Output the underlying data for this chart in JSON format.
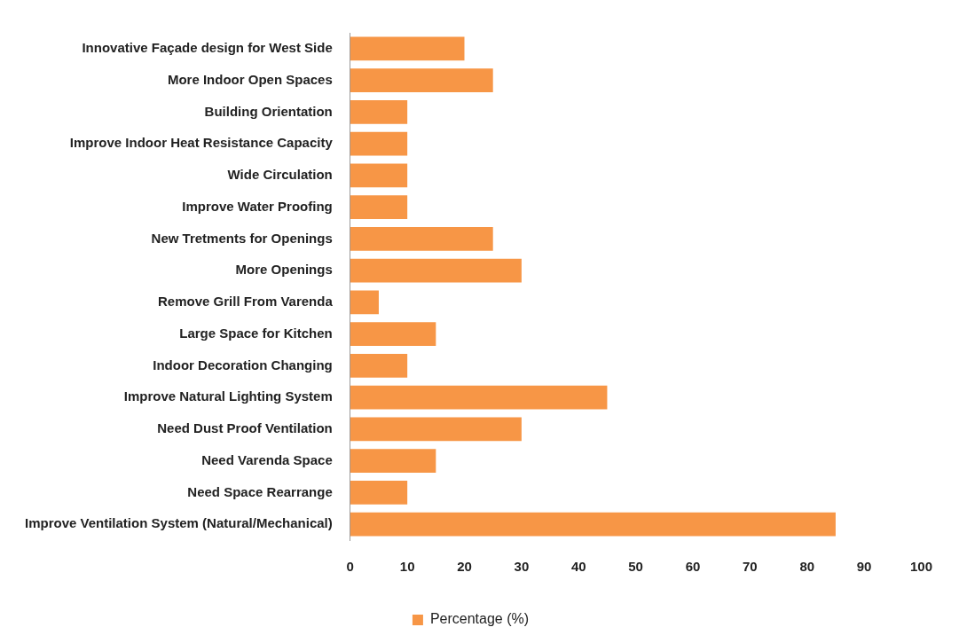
{
  "chart_data": {
    "type": "bar",
    "orientation": "horizontal",
    "categories": [
      "Innovative Façade design for West Side",
      "More Indoor Open Spaces",
      "Building Orientation",
      "Improve Indoor Heat Resistance Capacity",
      "Wide Circulation",
      "Improve Water Proofing",
      "New Tretments for Openings",
      "More Openings",
      "Remove Grill From Varenda",
      "Large Space for Kitchen",
      "Indoor Decoration Changing",
      "Improve Natural Lighting System",
      "Need Dust Proof Ventilation",
      "Need Varenda Space",
      "Need Space Rearrange",
      "Improve Ventilation System (Natural/Mechanical)"
    ],
    "series": [
      {
        "name": "Percentage (%)",
        "color": "#f79646",
        "values": [
          20,
          25,
          10,
          10,
          10,
          10,
          25,
          30,
          5,
          15,
          10,
          45,
          30,
          15,
          10,
          85
        ]
      }
    ],
    "xlim": [
      0,
      100
    ],
    "xticks": [
      0,
      10,
      20,
      30,
      40,
      50,
      60,
      70,
      80,
      90,
      100
    ],
    "grid": false,
    "legend": "bottom"
  }
}
